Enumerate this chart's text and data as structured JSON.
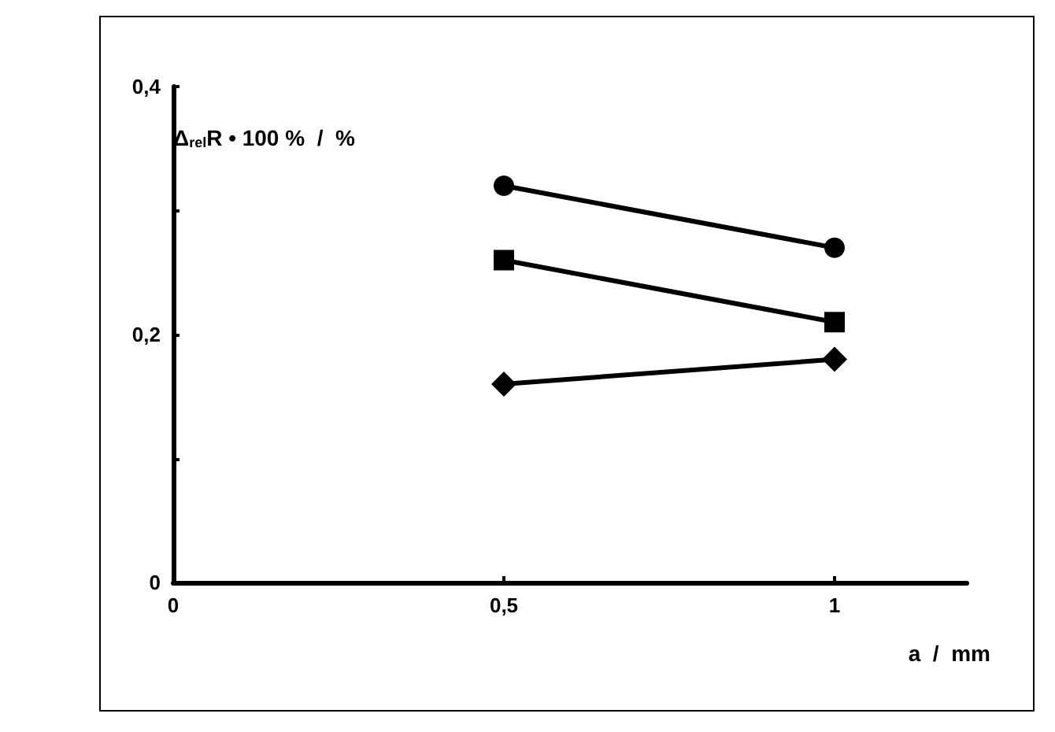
{
  "chart_data": {
    "type": "line",
    "xlabel": "a  /  mm",
    "ylabel": "Δ$_{rel}$R • 100 %  /  %",
    "x": [
      0.5,
      1
    ],
    "series": [
      {
        "color": "#000000",
        "marker": "circle",
        "values": [
          0.32,
          0.27
        ]
      },
      {
        "color": "#000000",
        "marker": "square",
        "values": [
          0.26,
          0.21
        ]
      },
      {
        "color": "#000000",
        "marker": "diamond",
        "values": [
          0.16,
          0.18
        ]
      }
    ],
    "xlim": [
      0,
      1.2
    ],
    "xticks": [
      0,
      {
        "value": 0.5,
        "label": "0,5"
      },
      1
    ],
    "ylim": [
      0,
      0.4
    ],
    "yticks": [
      0,
      {
        "value": 0.1,
        "label": null
      },
      {
        "value": 0.2,
        "label": "0,2"
      },
      {
        "value": 0.3,
        "label": null
      },
      {
        "value": 0.4,
        "label": "0,4"
      }
    ],
    "grid": false,
    "line_style": "solid"
  }
}
